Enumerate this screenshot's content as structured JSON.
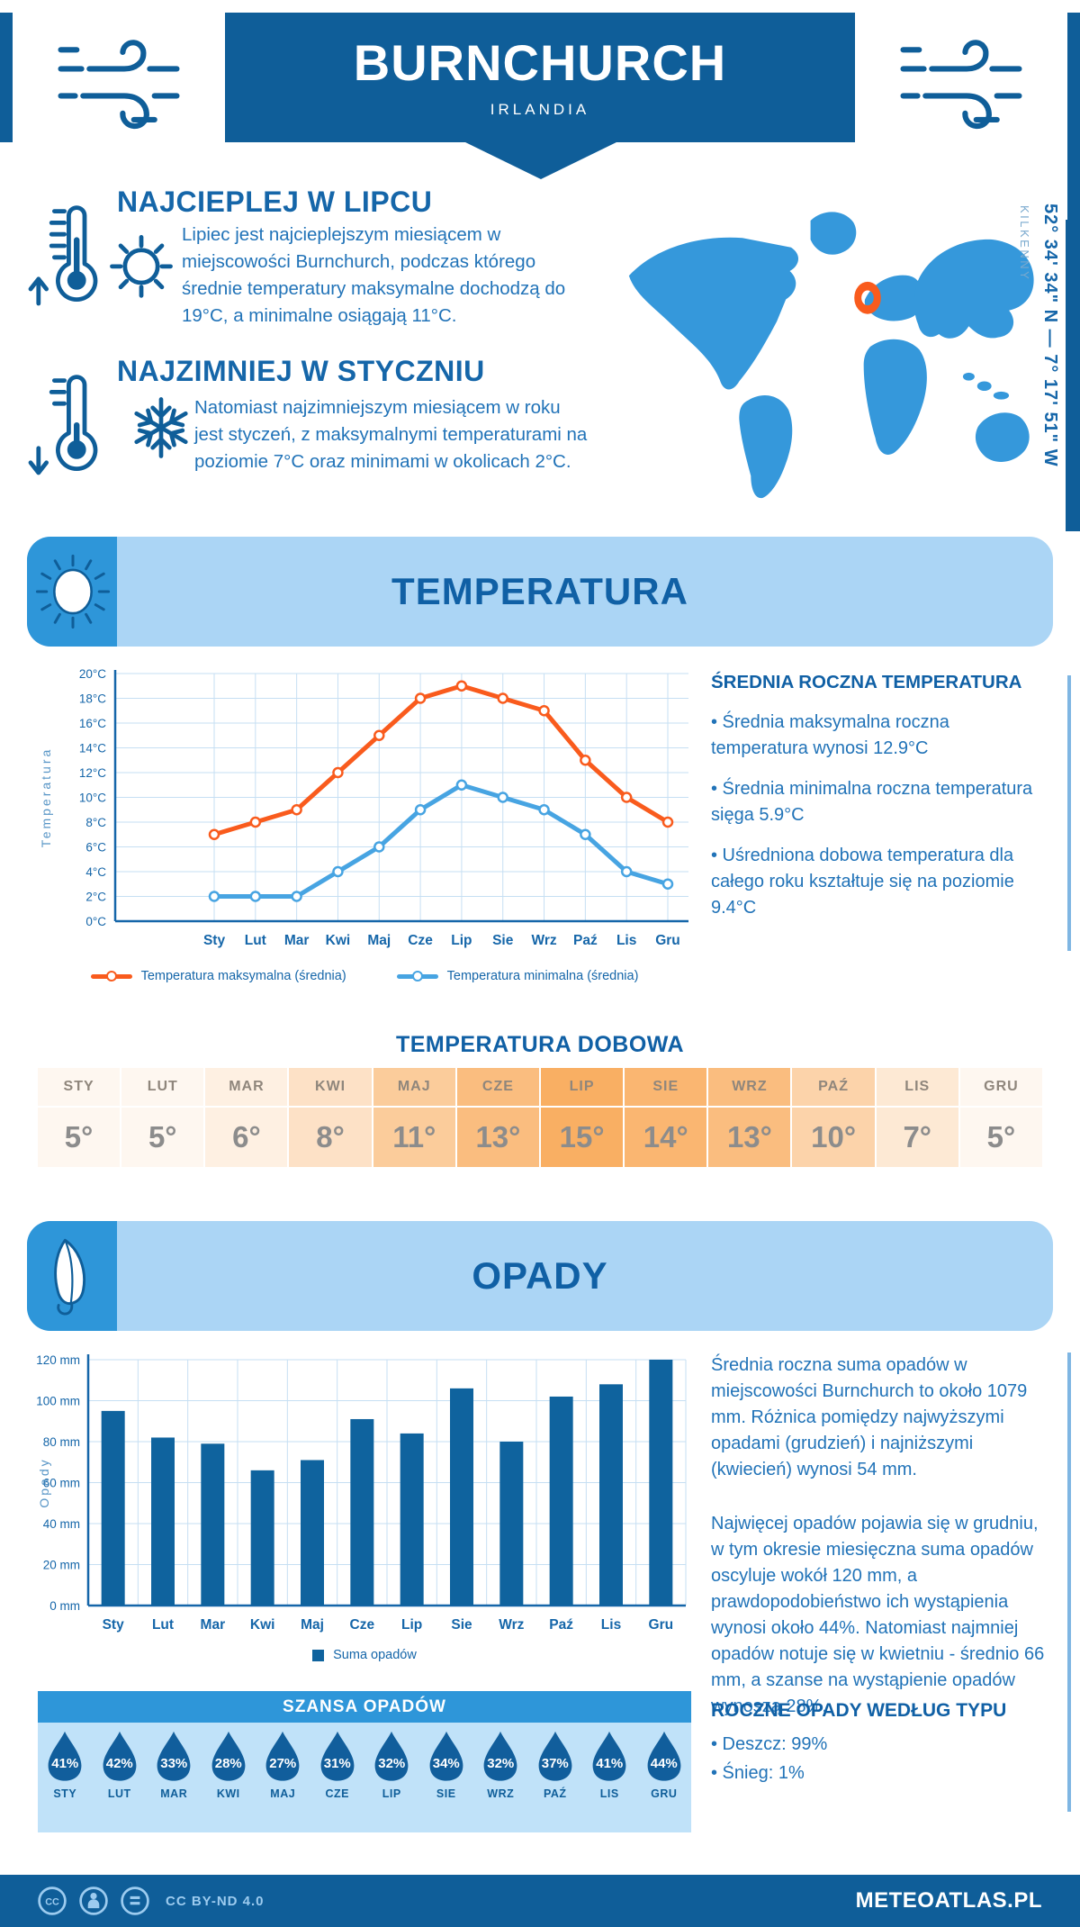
{
  "header": {
    "title": "BURNCHURCH",
    "subtitle": "IRLANDIA"
  },
  "location": {
    "coordinates": "52° 34' 34\" N — 7° 17' 51\" W",
    "region": "KILKENNY"
  },
  "highlights": [
    {
      "title": "NAJCIEPLEJ W LIPCU",
      "text": "Lipiec jest najcieplejszym miesiącem w miejscowości Burnchurch, podczas którego średnie temperatury maksymalne dochodzą do 19°C, a minimalne osiągają 11°C."
    },
    {
      "title": "NAJZIMNIEJ W STYCZNIU",
      "text": "Natomiast najzimniejszym miesiącem w roku jest styczeń, z maksymalnymi temperaturami na poziomie 7°C oraz minimami w okolicach 2°C."
    }
  ],
  "temperature_summary": {
    "title": "ŚREDNIA ROCZNA TEMPERATURA",
    "bullets": [
      "• Średnia maksymalna roczna temperatura wynosi 12.9°C",
      "• Średnia minimalna roczna temperatura sięga 5.9°C",
      "• Uśredniona dobowa temperatura dla całego roku kształtuje się na poziomie 9.4°C"
    ]
  },
  "precipitation_text": {
    "paragraphs": [
      "Średnia roczna suma opadów w miejscowości Burnchurch to około 1079 mm. Różnica pomiędzy najwyższymi opadami (grudzień) i najniższymi (kwiecień) wynosi 54 mm.",
      "Najwięcej opadów pojawia się w grudniu, w tym okresie miesięczna suma opadów oscyluje wokół 120 mm, a prawdopodobieństwo ich wystąpienia wynosi około 44%. Natomiast najmniej opadów notuje się w kwietniu - średnio 66 mm, a szanse na wystąpienie opadów wynoszą 28%."
    ]
  },
  "precipitation_type": {
    "title": "ROCZNE OPADY WEDŁUG TYPU",
    "bullets": [
      "• Deszcz: 99%",
      "• Śnieg: 1%"
    ]
  },
  "footer": {
    "license": "CC BY-ND 4.0",
    "brand": "METEOATLAS.PL"
  },
  "colors": {
    "primary_dark": "#0F5E99",
    "heading_blue": "#1060A5",
    "body_text": "#2173B8",
    "banner_light": "#ABD5F5",
    "badge_blue": "#2E96D9",
    "map_blue": "#3598DB",
    "marker_orange": "#F95B1D",
    "line_max": "#F95B1D",
    "line_min": "#47A4E2",
    "bar_blue": "#0F639E",
    "raindrop": "#115E9C",
    "chance_bg": "#C0E2F9",
    "footer_icon": "#9CCBEF"
  },
  "icons": {
    "header": "wind-icon",
    "warm_block": [
      "thermometer-up-icon",
      "sun-icon"
    ],
    "cold_block": [
      "thermometer-down-icon",
      "snowflake-icon"
    ],
    "temperature_banner": "sun-badge-icon",
    "precipitation_banner": "umbrella-icon",
    "map_marker": "location-ring-icon",
    "chance": "raindrop-icon",
    "footer": [
      "cc-icon",
      "person-icon",
      "nd-icon"
    ]
  },
  "chart_data": [
    {
      "type": "line",
      "title": "TEMPERATURA",
      "categories": [
        "Sty",
        "Lut",
        "Mar",
        "Kwi",
        "Maj",
        "Cze",
        "Lip",
        "Sie",
        "Wrz",
        "Paź",
        "Lis",
        "Gru"
      ],
      "series": [
        {
          "name": "Temperatura maksymalna (średnia)",
          "color": "#F95B1D",
          "values": [
            7,
            8,
            9,
            12,
            15,
            18,
            19,
            18,
            17,
            13,
            10,
            8
          ]
        },
        {
          "name": "Temperatura minimalna (średnia)",
          "color": "#47A4E2",
          "values": [
            2,
            2,
            2,
            4,
            6,
            9,
            11,
            10,
            9,
            7,
            4,
            3
          ]
        }
      ],
      "xlabel": "",
      "ylabel": "Temperatura",
      "ylim": [
        0,
        20
      ],
      "ytick_step": 2,
      "ytick_suffix": "°C",
      "grid": true,
      "legend_position": "bottom"
    },
    {
      "type": "bar",
      "title": "OPADY",
      "categories": [
        "Sty",
        "Lut",
        "Mar",
        "Kwi",
        "Maj",
        "Cze",
        "Lip",
        "Sie",
        "Wrz",
        "Paź",
        "Lis",
        "Gru"
      ],
      "series": [
        {
          "name": "Suma opadów",
          "color": "#0F639E",
          "values": [
            95,
            82,
            79,
            66,
            71,
            91,
            84,
            106,
            80,
            102,
            108,
            120
          ]
        }
      ],
      "xlabel": "",
      "ylabel": "Opady",
      "ylim": [
        0,
        120
      ],
      "ytick_step": 20,
      "ytick_suffix": " mm",
      "grid": true,
      "legend_position": "bottom"
    },
    {
      "type": "table",
      "title": "TEMPERATURA DOBOWA",
      "categories": [
        "STY",
        "LUT",
        "MAR",
        "KWI",
        "MAJ",
        "CZE",
        "LIP",
        "SIE",
        "WRZ",
        "PAŹ",
        "LIS",
        "GRU"
      ],
      "values": [
        5,
        5,
        6,
        8,
        11,
        13,
        15,
        14,
        13,
        10,
        7,
        5
      ],
      "value_suffix": "°",
      "tint_scale": {
        "min_value": 5,
        "max_value": 15,
        "from": "#FEF7F0",
        "to": "#F9AF63"
      }
    },
    {
      "type": "table",
      "title": "SZANSA OPADÓW",
      "categories": [
        "STY",
        "LUT",
        "MAR",
        "KWI",
        "MAJ",
        "CZE",
        "LIP",
        "SIE",
        "WRZ",
        "PAŹ",
        "LIS",
        "GRU"
      ],
      "values": [
        41,
        42,
        33,
        28,
        27,
        31,
        32,
        34,
        32,
        37,
        41,
        44
      ],
      "value_suffix": "%"
    }
  ]
}
